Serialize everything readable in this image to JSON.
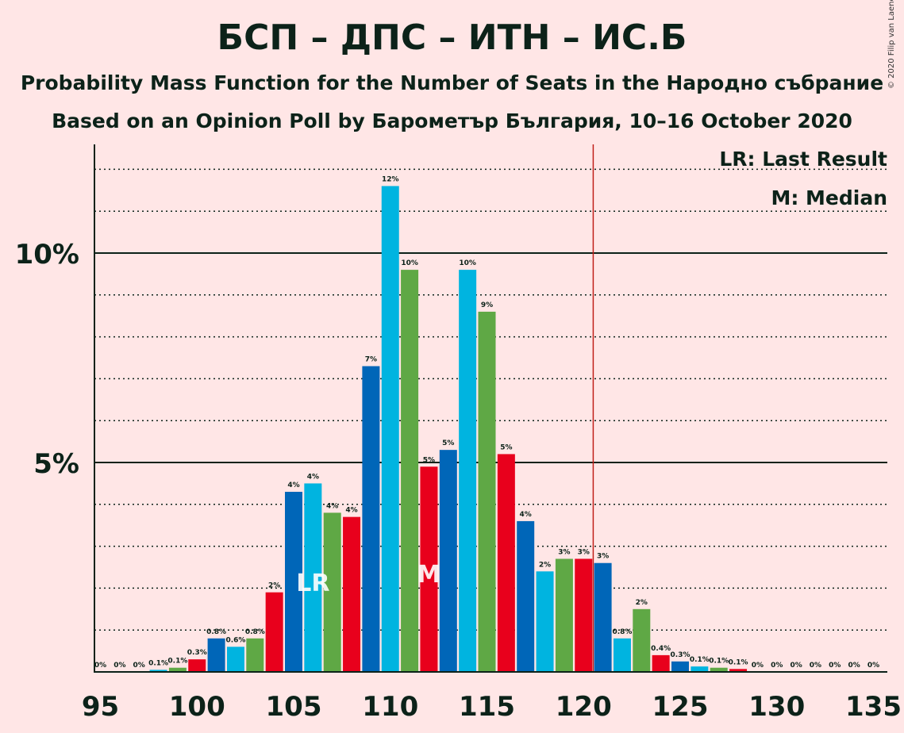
{
  "header": {
    "title": "БСП – ДПС – ИТН – ИС.Б",
    "subtitle": "Probability Mass Function for the Number of Seats in the Народно събрание",
    "subtitle2": "Based on an Opinion Poll by Барометър България, 10–16 October 2020",
    "copyright": "© 2020 Filip van Laenen"
  },
  "legend": {
    "last_result": "LR: Last Result",
    "median": "M: Median"
  },
  "chart_data": {
    "type": "bar",
    "title": "БСП – ДПС – ИТН – ИС.Б",
    "x_start": 95,
    "x_end": 135,
    "x_ticks": [
      95,
      100,
      105,
      110,
      115,
      120,
      125,
      130,
      135
    ],
    "y_ticks": [
      {
        "value": 5,
        "label": "5%"
      },
      {
        "value": 10,
        "label": "10%"
      }
    ],
    "ylim": [
      0,
      12.5
    ],
    "majority_line": 120.5,
    "last_result_seat": 106,
    "last_result_label": "LR",
    "median_seat": 112,
    "median_label": "M",
    "colors": {
      "blue": "#0066B8",
      "cyan": "#00B4E0",
      "green": "#5FA845",
      "red": "#E8001C",
      "majority": "#C0201A",
      "axis": "#0C2219"
    },
    "color_cycle": [
      "blue",
      "cyan",
      "green",
      "red"
    ],
    "seats": [
      95,
      96,
      97,
      98,
      99,
      100,
      101,
      102,
      103,
      104,
      105,
      106,
      107,
      108,
      109,
      110,
      111,
      112,
      113,
      114,
      115,
      116,
      117,
      118,
      119,
      120,
      121,
      122,
      123,
      124,
      125,
      126,
      127,
      128,
      129,
      130,
      131,
      132,
      133,
      134,
      135
    ],
    "values": [
      0,
      0,
      0,
      0.05,
      0.1,
      0.3,
      0.8,
      0.6,
      0.8,
      1.9,
      4.3,
      4.5,
      3.8,
      3.7,
      7.3,
      11.6,
      9.6,
      4.9,
      5.3,
      9.6,
      8.6,
      5.2,
      3.6,
      2.4,
      2.7,
      2.7,
      2.6,
      0.8,
      1.5,
      0.4,
      0.25,
      0.13,
      0.1,
      0.07,
      0,
      0,
      0,
      0,
      0,
      0,
      0
    ],
    "labels": [
      "0%",
      "0%",
      "0%",
      "0.1%",
      "0.1%",
      "0.3%",
      "0.8%",
      "0.6%",
      "0.8%",
      "2%",
      "4%",
      "4%",
      "4%",
      "4%",
      "7%",
      "12%",
      "10%",
      "5%",
      "5%",
      "10%",
      "9%",
      "5%",
      "4%",
      "2%",
      "3%",
      "3%",
      "3%",
      "0.8%",
      "2%",
      "0.4%",
      "0.3%",
      "0.1%",
      "0.1%",
      "0.1%",
      "0%",
      "0%",
      "0%",
      "0%",
      "0%",
      "0%",
      "0%"
    ]
  }
}
